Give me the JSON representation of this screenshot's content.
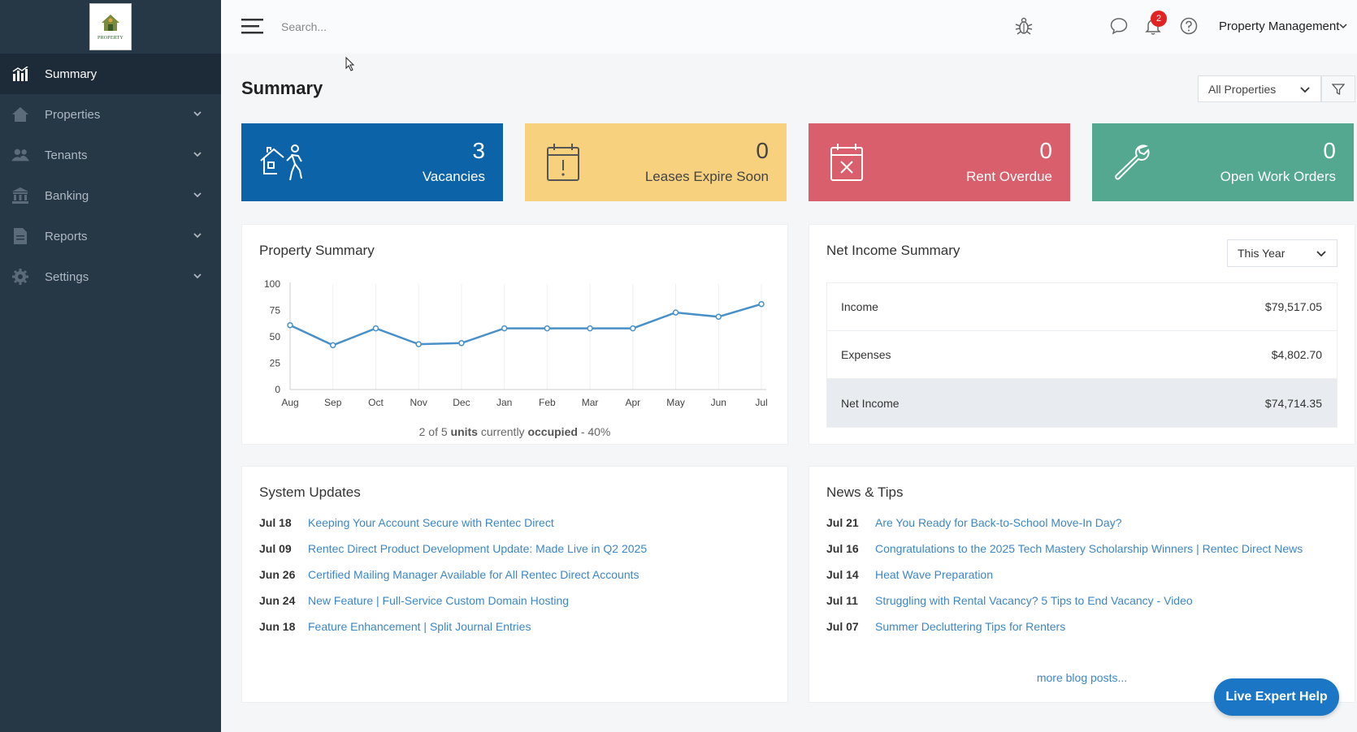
{
  "logo": {
    "text": "PROPERTY"
  },
  "sidebar": {
    "items": [
      {
        "label": "Summary",
        "icon": "chart-icon",
        "active": true
      },
      {
        "label": "Properties",
        "icon": "home-icon"
      },
      {
        "label": "Tenants",
        "icon": "users-icon"
      },
      {
        "label": "Banking",
        "icon": "bank-icon"
      },
      {
        "label": "Reports",
        "icon": "file-icon"
      },
      {
        "label": "Settings",
        "icon": "gear-icon"
      }
    ]
  },
  "topbar": {
    "search_placeholder": "Search...",
    "notification_count": "2",
    "account_label": "Property Management"
  },
  "page": {
    "title": "Summary",
    "property_filter": "All Properties"
  },
  "stats": [
    {
      "value": "3",
      "label": "Vacancies",
      "color": "#0d63a8"
    },
    {
      "value": "0",
      "label": "Leases Expire Soon",
      "color": "#f8d17e"
    },
    {
      "value": "0",
      "label": "Rent Overdue",
      "color": "#d95f6c"
    },
    {
      "value": "0",
      "label": "Open Work Orders",
      "color": "#54a88f"
    }
  ],
  "property_summary": {
    "title": "Property Summary",
    "occupancy": {
      "count": "2 of 5",
      "units": "units",
      "currently": "currently",
      "occupied": "occupied",
      "pct": "- 40%"
    }
  },
  "chart_data": {
    "type": "line",
    "categories": [
      "Aug",
      "Sep",
      "Oct",
      "Nov",
      "Dec",
      "Jan",
      "Feb",
      "Mar",
      "Apr",
      "May",
      "Jun",
      "Jul"
    ],
    "values": [
      61,
      42,
      58,
      43,
      44,
      58,
      58,
      58,
      58,
      73,
      69,
      81
    ],
    "ylim": [
      0,
      100
    ],
    "yticks": [
      0,
      25,
      50,
      75,
      100
    ],
    "grid": true,
    "color": "#4a90c8"
  },
  "net_income": {
    "title": "Net Income Summary",
    "period": "This Year",
    "rows": [
      {
        "label": "Income",
        "value": "$79,517.05"
      },
      {
        "label": "Expenses",
        "value": "$4,802.70"
      },
      {
        "label": "Net Income",
        "value": "$74,714.35"
      }
    ]
  },
  "system_updates": {
    "title": "System Updates",
    "items": [
      {
        "date": "Jul 18",
        "title": "Keeping Your Account Secure with Rentec Direct"
      },
      {
        "date": "Jul 09",
        "title": "Rentec Direct Product Development Update: Made Live in Q2 2025"
      },
      {
        "date": "Jun 26",
        "title": "Certified Mailing Manager Available for All Rentec Direct Accounts"
      },
      {
        "date": "Jun 24",
        "title": "New Feature | Full-Service Custom Domain Hosting"
      },
      {
        "date": "Jun 18",
        "title": "Feature Enhancement | Split Journal Entries"
      }
    ]
  },
  "news_tips": {
    "title": "News & Tips",
    "items": [
      {
        "date": "Jul 21",
        "title": "Are You Ready for Back-to-School Move-In Day?"
      },
      {
        "date": "Jul 16",
        "title": "Congratulations to the 2025 Tech Mastery Scholarship Winners | Rentec Direct News"
      },
      {
        "date": "Jul 14",
        "title": "Heat Wave Preparation"
      },
      {
        "date": "Jul 11",
        "title": "Struggling with Rental Vacancy? 5 Tips to End Vacancy - Video"
      },
      {
        "date": "Jul 07",
        "title": "Summer Decluttering Tips for Renters"
      }
    ],
    "more_label": "more blog posts..."
  },
  "help_button": "Live Expert Help"
}
